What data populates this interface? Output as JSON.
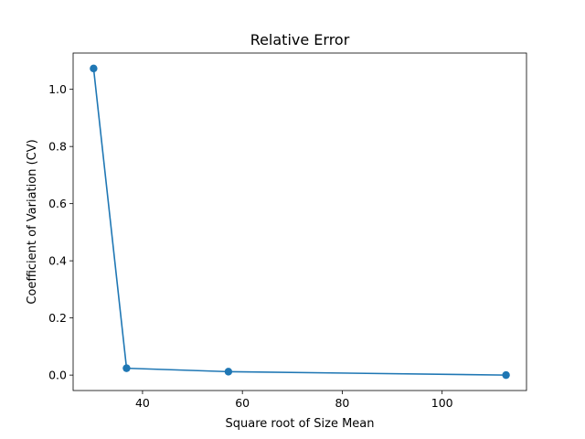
{
  "chart_data": {
    "type": "line",
    "title": "Relative Error",
    "xlabel": "Square root of Size Mean",
    "ylabel": "Coefficient of Variation (CV)",
    "xlim": [
      26.1,
      116.9
    ],
    "ylim": [
      -0.054,
      1.127
    ],
    "xticks": [
      40,
      60,
      80,
      100
    ],
    "xtick_labels": [
      "40",
      "60",
      "80",
      "100"
    ],
    "yticks": [
      0.0,
      0.2,
      0.4,
      0.6,
      0.8,
      1.0
    ],
    "ytick_labels": [
      "0.0",
      "0.2",
      "0.4",
      "0.6",
      "0.8",
      "1.0"
    ],
    "grid": false,
    "legend": "none",
    "series": [
      {
        "color": "#1f77b4",
        "marker": "circle",
        "x": [
          30.2,
          36.8,
          57.2,
          112.8
        ],
        "y": [
          1.073,
          0.024,
          0.012,
          0.0
        ]
      }
    ]
  }
}
